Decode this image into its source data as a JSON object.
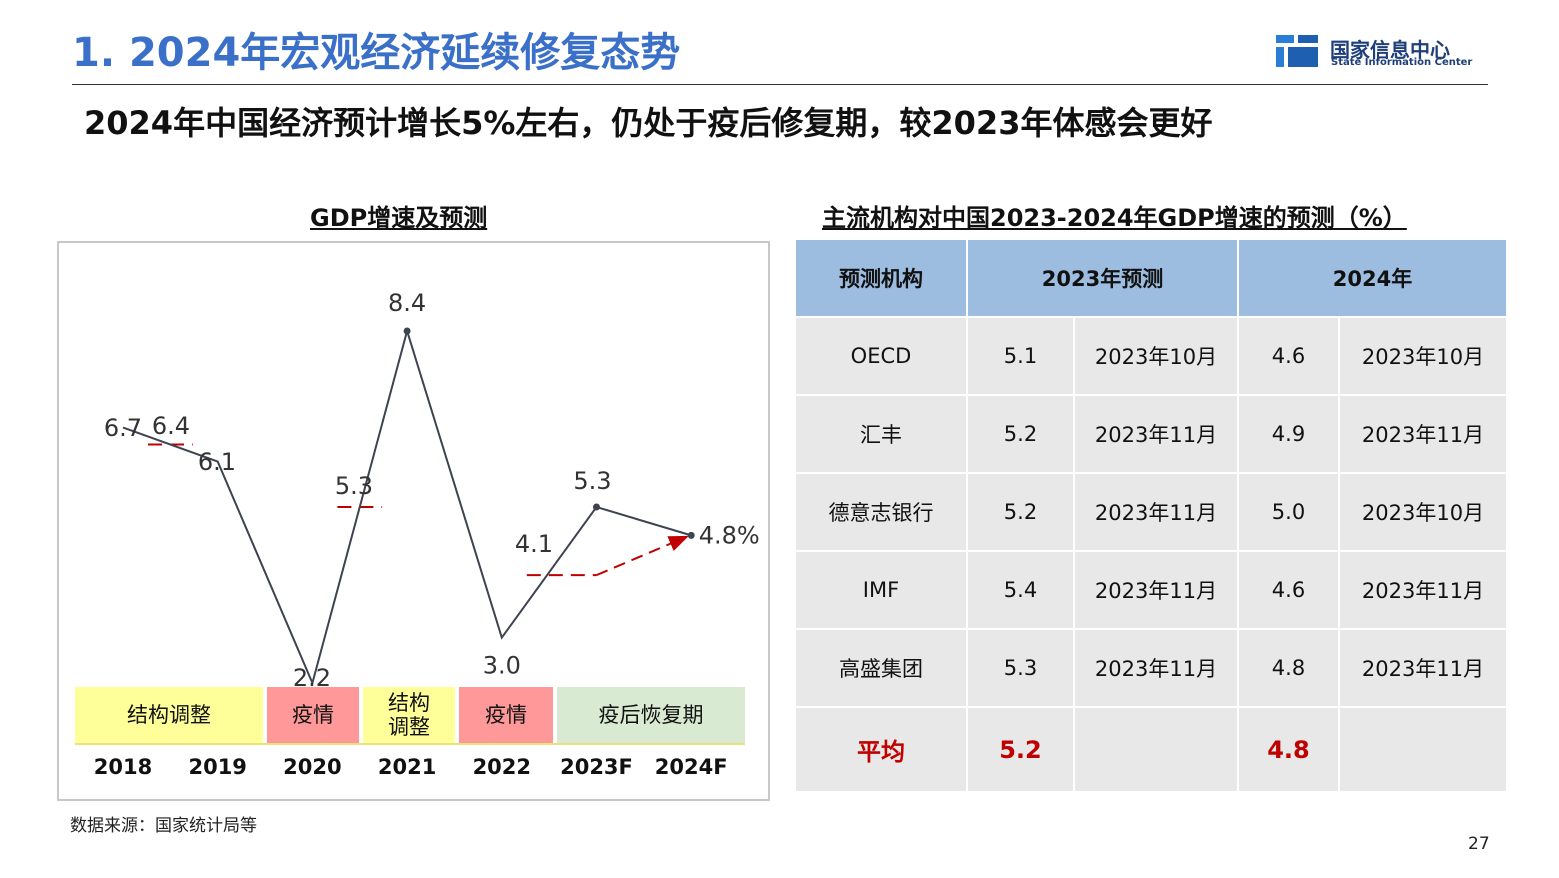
{
  "header": {
    "title": "1. 2024年宏观经济延续修复态势",
    "logo_cn": "国家信息中心",
    "logo_en": "State Information Center"
  },
  "subtitle": "2024年中国经济预计增长5%左右，仍处于疫后修复期，较2023年体感会更好",
  "chart_title": "GDP增速及预测",
  "table_title": "主流机构对中国2023-2024年GDP增速的预测（%）",
  "colors": {
    "accent": "#3a70c8",
    "line": "#3d4350",
    "dash": "#c00000",
    "yellow": "#ffff99",
    "pink": "#ff9999",
    "green": "#d9ead3",
    "table_head": "#9cbde0",
    "table_cell": "#e8e8e8"
  },
  "chart_data": {
    "type": "line",
    "title": "GDP增速及预测",
    "categories": [
      "2018",
      "2019",
      "2020",
      "2021",
      "2022",
      "2023F",
      "2024F"
    ],
    "series": [
      {
        "values": [
          6.7,
          6.1,
          2.2,
          8.4,
          3.0,
          5.3,
          4.8
        ]
      }
    ],
    "extra_labels": [
      {
        "x": "2018",
        "label": "6.4"
      }
    ],
    "last_label": "4.8%",
    "period_averages": [
      {
        "from": "2018",
        "to": "2019",
        "value": 6.4
      },
      {
        "from": "2020",
        "to": "2021",
        "value": 5.3
      },
      {
        "from": "2022",
        "to": "2023F",
        "value": 4.1
      }
    ],
    "data_labels": [
      "6.7",
      "6.1",
      "2.2",
      "8.4",
      "3.0",
      "5.3",
      "4.8%"
    ],
    "avg_labels": [
      "6.4",
      "5.3",
      "4.1"
    ],
    "ylim": [
      2.0,
      8.4
    ],
    "grid": false
  },
  "phases": [
    {
      "label": "结构调整"
    },
    {
      "label": "疫情"
    },
    {
      "label": "结构\n调整"
    },
    {
      "label": "疫情"
    },
    {
      "label": "疫后恢复期"
    }
  ],
  "table": {
    "header": [
      "预测机构",
      "2023年预测",
      "2024年"
    ],
    "rows": [
      {
        "org": "OECD",
        "v2023": "5.1",
        "d2023": "2023年10月",
        "v2024": "4.6",
        "d2024": "2023年10月"
      },
      {
        "org": "汇丰",
        "v2023": "5.2",
        "d2023": "2023年11月",
        "v2024": "4.9",
        "d2024": "2023年11月"
      },
      {
        "org": "德意志银行",
        "v2023": "5.2",
        "d2023": "2023年11月",
        "v2024": "5.0",
        "d2024": "2023年10月"
      },
      {
        "org": "IMF",
        "v2023": "5.4",
        "d2023": "2023年11月",
        "v2024": "4.6",
        "d2024": "2023年11月"
      },
      {
        "org": "高盛集团",
        "v2023": "5.3",
        "d2023": "2023年11月",
        "v2024": "4.8",
        "d2024": "2023年11月"
      }
    ],
    "average": {
      "label": "平均",
      "v2023": "5.2",
      "v2024": "4.8"
    }
  },
  "source": "数据来源：国家统计局等",
  "page_number": "27"
}
